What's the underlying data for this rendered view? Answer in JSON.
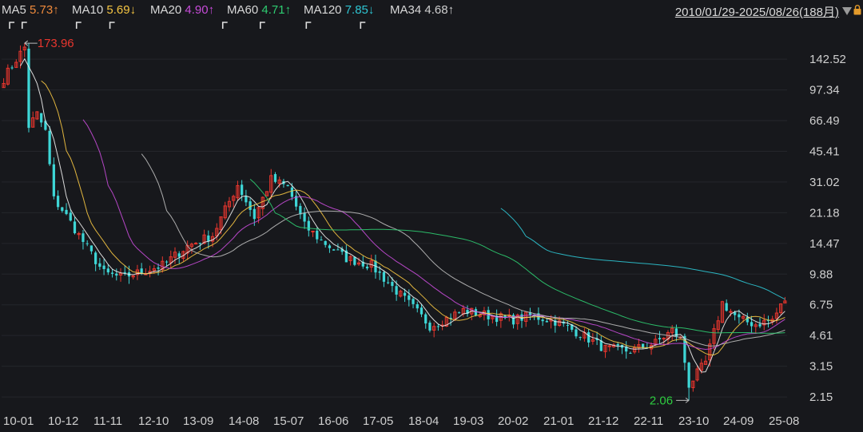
{
  "legend": {
    "items": [
      {
        "name": "MA5",
        "value": "5.73",
        "arrow": "↑",
        "color": "#f0f0f0"
      },
      {
        "name": "MA10",
        "value": "5.69",
        "arrow": "↓",
        "color": "#f5c542"
      },
      {
        "name": "MA20",
        "value": "4.90",
        "arrow": "↑",
        "color": "#c64bd8"
      },
      {
        "name": "MA60",
        "value": "4.71",
        "arrow": "↑",
        "color": "#2ecc71"
      },
      {
        "name": "MA120",
        "value": "7.85",
        "arrow": "↓",
        "color": "#2ec5d3"
      },
      {
        "name": "MA34",
        "value": "4.68",
        "arrow": "↑",
        "color": "#cfcfcf"
      }
    ],
    "range": "2010/01/29-2025/08/26(188月)"
  },
  "colors": {
    "up": "#e8362e",
    "down": "#3ed6d6",
    "high_label": "#e8362e",
    "low_label": "#2ecc40",
    "axis_text": "#cfcfcf",
    "ma5": "#f0f0f0",
    "ma10": "#f5c542",
    "ma20": "#c64bd8",
    "ma60": "#2ecc71",
    "ma120": "#2ec5d3",
    "ma34": "#bdbdbd"
  },
  "icons": [
    "flag-icon",
    "lock-icon",
    "chevron-down-icon"
  ],
  "chart_data": {
    "type": "candlestick",
    "scale": "log",
    "ylim": [
      1.8,
      200
    ],
    "y_ticks": [
      "142.52",
      "97.34",
      "66.49",
      "45.41",
      "31.02",
      "21.18",
      "14.47",
      "9.88",
      "6.75",
      "4.61",
      "3.15",
      "2.15"
    ],
    "x_ticks": [
      "10-01",
      "10-12",
      "11-11",
      "12-10",
      "13-09",
      "14-08",
      "15-07",
      "16-06",
      "17-05",
      "18-04",
      "19-03",
      "20-02",
      "21-01",
      "21-12",
      "22-11",
      "23-10",
      "24-09",
      "25-08"
    ],
    "annotations": [
      {
        "label": "173.96",
        "kind": "high",
        "month_index": 5
      },
      {
        "label": "2.06",
        "kind": "low",
        "month_index": 164
      }
    ],
    "markers_month_index": [
      2,
      5,
      18,
      26,
      53,
      62,
      73,
      86
    ],
    "anchors": [
      [
        0,
        112
      ],
      [
        3,
        142
      ],
      [
        5,
        165
      ],
      [
        6,
        62
      ],
      [
        8,
        72
      ],
      [
        10,
        58
      ],
      [
        12,
        25
      ],
      [
        14,
        22
      ],
      [
        18,
        16
      ],
      [
        24,
        10
      ],
      [
        28,
        9.5
      ],
      [
        32,
        10
      ],
      [
        38,
        11
      ],
      [
        44,
        14
      ],
      [
        50,
        16
      ],
      [
        56,
        30
      ],
      [
        60,
        20
      ],
      [
        64,
        32
      ],
      [
        68,
        29
      ],
      [
        72,
        18
      ],
      [
        76,
        15
      ],
      [
        82,
        12
      ],
      [
        88,
        11
      ],
      [
        94,
        8
      ],
      [
        98,
        6.5
      ],
      [
        102,
        5.2
      ],
      [
        106,
        5.7
      ],
      [
        110,
        6.3
      ],
      [
        116,
        5.9
      ],
      [
        122,
        5.6
      ],
      [
        126,
        5.9
      ],
      [
        132,
        5.5
      ],
      [
        138,
        4.7
      ],
      [
        144,
        3.9
      ],
      [
        150,
        3.8
      ],
      [
        156,
        4.2
      ],
      [
        160,
        4.9
      ],
      [
        162,
        4.4
      ],
      [
        164,
        2.5
      ],
      [
        168,
        3.3
      ],
      [
        172,
        6.9
      ],
      [
        176,
        5.6
      ],
      [
        180,
        5.3
      ],
      [
        184,
        5.6
      ],
      [
        187,
        7.2
      ]
    ]
  }
}
